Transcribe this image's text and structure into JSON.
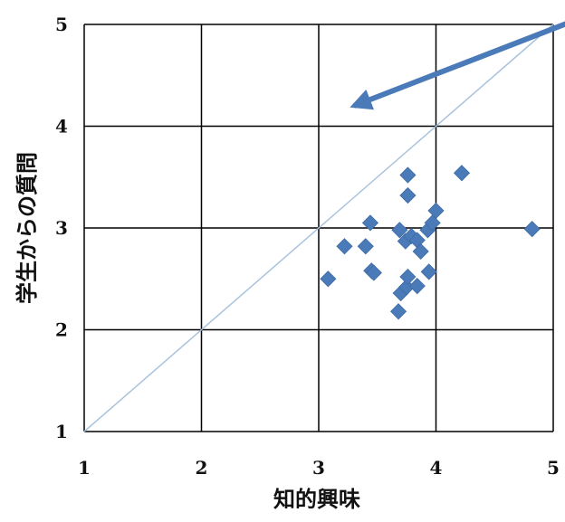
{
  "chart_data": {
    "type": "scatter",
    "xlabel": "知的興味",
    "ylabel": "学生からの質問",
    "xlim": [
      1,
      5
    ],
    "ylim": [
      1,
      5
    ],
    "x_ticks": [
      "1",
      "2",
      "3",
      "4",
      "5"
    ],
    "y_ticks": [
      "1",
      "2",
      "3",
      "4",
      "5"
    ],
    "grid": true,
    "reference_line": {
      "type": "diagonal",
      "description": "y = x",
      "color": "#a9c3de"
    },
    "annotation_arrow": {
      "color": "#4a7ab8",
      "from": [
        5.0,
        4.9
      ],
      "to": [
        3.3,
        4.2
      ]
    },
    "marker": {
      "shape": "diamond",
      "color": "#4a7bb8"
    },
    "points": [
      {
        "x": 3.08,
        "y": 2.5
      },
      {
        "x": 3.22,
        "y": 2.82
      },
      {
        "x": 3.4,
        "y": 2.82
      },
      {
        "x": 3.44,
        "y": 3.05
      },
      {
        "x": 3.45,
        "y": 2.58
      },
      {
        "x": 3.47,
        "y": 2.56
      },
      {
        "x": 3.68,
        "y": 2.18
      },
      {
        "x": 3.69,
        "y": 2.98
      },
      {
        "x": 3.7,
        "y": 2.36
      },
      {
        "x": 3.74,
        "y": 2.87
      },
      {
        "x": 3.75,
        "y": 2.42
      },
      {
        "x": 3.76,
        "y": 2.52
      },
      {
        "x": 3.76,
        "y": 3.32
      },
      {
        "x": 3.76,
        "y": 3.52
      },
      {
        "x": 3.79,
        "y": 2.92
      },
      {
        "x": 3.84,
        "y": 2.88
      },
      {
        "x": 3.84,
        "y": 2.43
      },
      {
        "x": 3.87,
        "y": 2.77
      },
      {
        "x": 3.93,
        "y": 2.98
      },
      {
        "x": 3.94,
        "y": 2.57
      },
      {
        "x": 3.97,
        "y": 3.05
      },
      {
        "x": 4.0,
        "y": 3.17
      },
      {
        "x": 4.22,
        "y": 3.54
      },
      {
        "x": 4.82,
        "y": 2.99
      }
    ]
  }
}
